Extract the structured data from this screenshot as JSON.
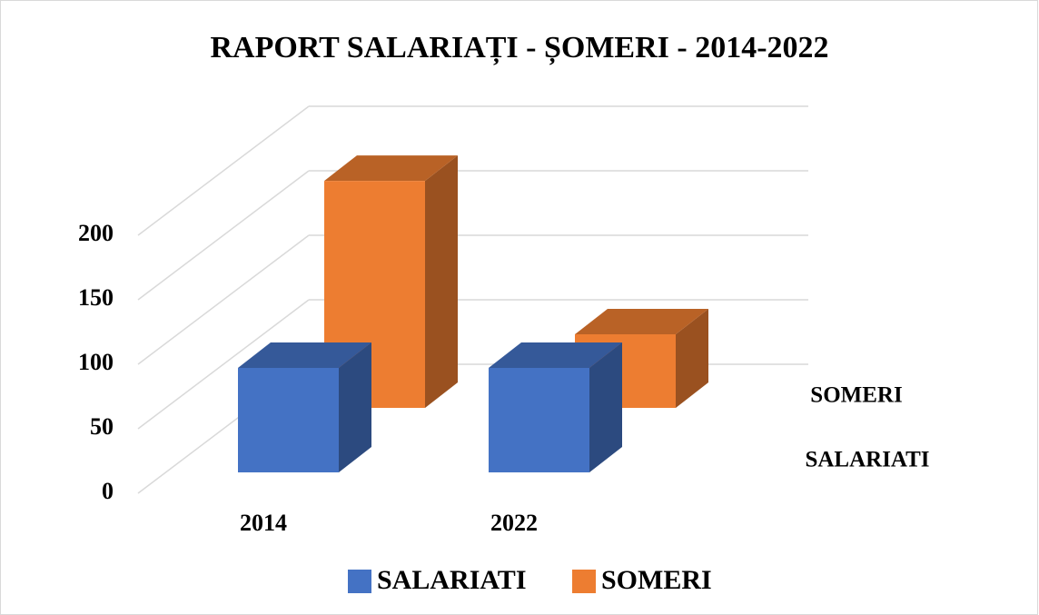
{
  "chart_data": {
    "type": "bar3d",
    "title": "RAPORT SALARIAȚI - ȘOMERI - 2014-2022",
    "categories": [
      "2014",
      "2022"
    ],
    "series": [
      {
        "name": "SALARIATI",
        "color": "#4472c4",
        "values": [
          81,
          81
        ]
      },
      {
        "name": "SOMERI",
        "color": "#ed7d31",
        "values": [
          176,
          57
        ]
      }
    ],
    "ylim": [
      0,
      200
    ],
    "yticks": [
      0,
      50,
      100,
      150,
      200
    ],
    "grid": true,
    "legend": "bottom"
  }
}
